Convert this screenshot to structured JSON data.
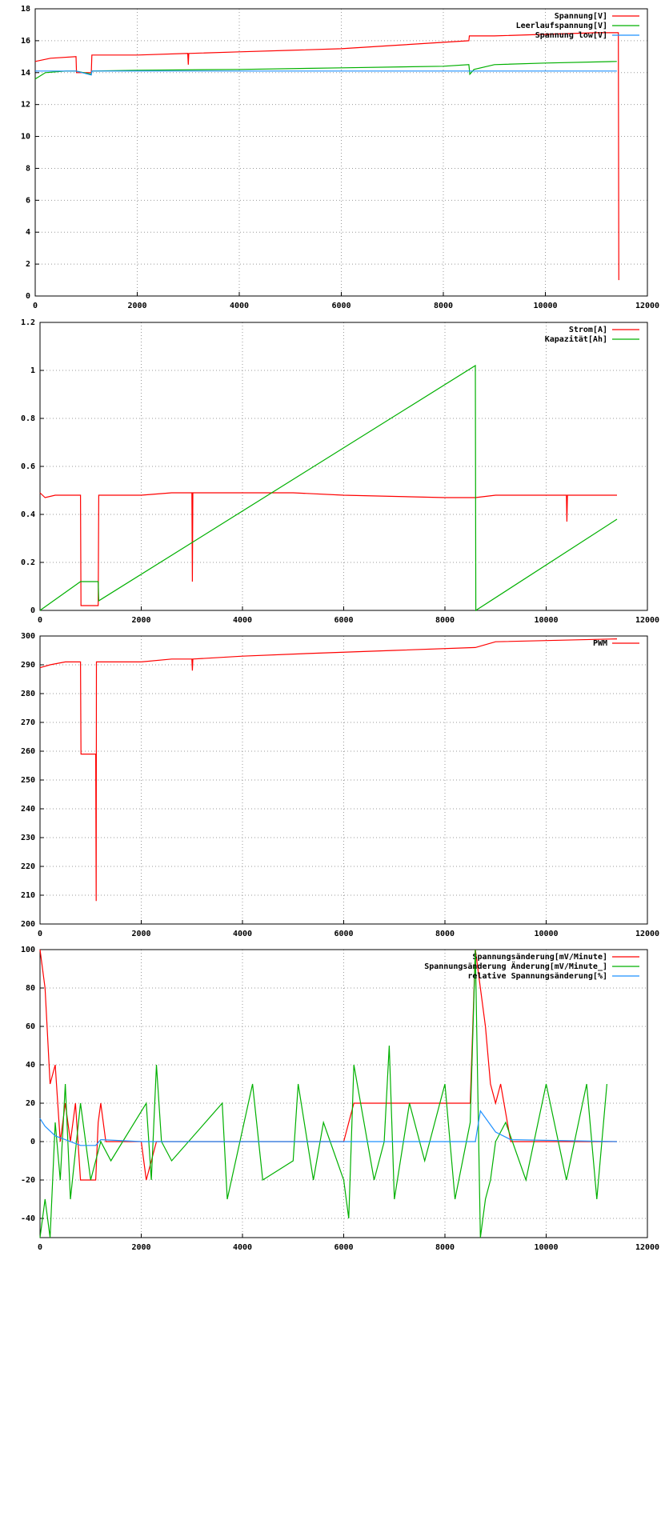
{
  "chart_data": [
    {
      "type": "line",
      "xlim": [
        0,
        12000
      ],
      "xticks": [
        0,
        2000,
        4000,
        6000,
        8000,
        10000,
        12000
      ],
      "ylim": [
        0,
        18
      ],
      "yticks": [
        0,
        2,
        4,
        6,
        8,
        10,
        12,
        14,
        16,
        18
      ],
      "grid": true,
      "legend": "upper right",
      "series": [
        {
          "name": "Spannung[V]",
          "color": "#ff0000",
          "x": [
            0,
            300,
            800,
            810,
            1100,
            1110,
            2000,
            2990,
            3000,
            3010,
            4000,
            5000,
            6000,
            7000,
            8000,
            8500,
            8510,
            9000,
            10000,
            11000,
            11400,
            11430,
            11440
          ],
          "values": [
            14.7,
            14.9,
            15.0,
            14.0,
            14.0,
            15.1,
            15.1,
            15.2,
            14.5,
            15.2,
            15.3,
            15.4,
            15.5,
            15.7,
            15.9,
            16.0,
            16.3,
            16.3,
            16.4,
            16.5,
            16.5,
            16.5,
            1.0
          ]
        },
        {
          "name": "Leerlaufspannung[V]",
          "color": "#00b000",
          "x": [
            0,
            200,
            600,
            800,
            1100,
            1110,
            2000,
            4000,
            6000,
            8000,
            8500,
            8520,
            8600,
            9000,
            10000,
            11400
          ],
          "values": [
            13.6,
            14.0,
            14.1,
            14.1,
            13.9,
            14.1,
            14.15,
            14.2,
            14.3,
            14.4,
            14.5,
            13.9,
            14.2,
            14.5,
            14.6,
            14.7
          ]
        },
        {
          "name": "Spannung low[V]",
          "color": "#1e90ff",
          "x": [
            0,
            800,
            1100,
            1110,
            11400
          ],
          "values": [
            14.1,
            14.1,
            13.85,
            14.1,
            14.1
          ]
        }
      ]
    },
    {
      "type": "line",
      "xlim": [
        0,
        12000
      ],
      "xticks": [
        0,
        2000,
        4000,
        6000,
        8000,
        10000,
        12000
      ],
      "ylim": [
        0,
        1.2
      ],
      "yticks": [
        0,
        0.2,
        0.4,
        0.6,
        0.8,
        1,
        1.2
      ],
      "grid": true,
      "legend": "upper right",
      "series": [
        {
          "name": "Strom[A]",
          "color": "#ff0000",
          "x": [
            0,
            100,
            300,
            800,
            810,
            1150,
            1160,
            2000,
            2600,
            3000,
            3010,
            3020,
            4000,
            5000,
            6000,
            7000,
            8000,
            8600,
            9000,
            10000,
            10400,
            10410,
            10420,
            11400
          ],
          "values": [
            0.49,
            0.47,
            0.48,
            0.48,
            0.02,
            0.02,
            0.48,
            0.48,
            0.49,
            0.49,
            0.12,
            0.49,
            0.49,
            0.49,
            0.48,
            0.475,
            0.47,
            0.47,
            0.48,
            0.48,
            0.48,
            0.37,
            0.48,
            0.48
          ]
        },
        {
          "name": "Kapazität[Ah]",
          "color": "#00b000",
          "x": [
            0,
            800,
            1150,
            1160,
            8600,
            8610,
            11400
          ],
          "values": [
            0,
            0.12,
            0.12,
            0.04,
            1.02,
            0,
            0.38
          ]
        }
      ]
    },
    {
      "type": "line",
      "xlim": [
        0,
        12000
      ],
      "xticks": [
        0,
        2000,
        4000,
        6000,
        8000,
        10000,
        12000
      ],
      "ylim": [
        200,
        300
      ],
      "yticks": [
        200,
        210,
        220,
        230,
        240,
        250,
        260,
        270,
        280,
        290,
        300
      ],
      "grid": true,
      "legend": "upper right",
      "series": [
        {
          "name": "PWM",
          "color": "#ff0000",
          "x": [
            0,
            200,
            500,
            800,
            810,
            1100,
            1110,
            1115,
            1130,
            2000,
            2600,
            3000,
            3010,
            3020,
            4000,
            5400,
            7000,
            8600,
            9000,
            11400
          ],
          "values": [
            289,
            290,
            291,
            291,
            259,
            259,
            208,
            291,
            291,
            291,
            292,
            292,
            288,
            292,
            293,
            294,
            295,
            296,
            298,
            299
          ]
        }
      ]
    },
    {
      "type": "line",
      "xlim": [
        0,
        12000
      ],
      "xticks": [
        0,
        2000,
        4000,
        6000,
        8000,
        10000,
        12000
      ],
      "ylim": [
        -50,
        100
      ],
      "yticks": [
        -40,
        -20,
        0,
        20,
        40,
        60,
        80,
        100
      ],
      "grid": true,
      "legend": "upper right",
      "series": [
        {
          "name": "Spannungsänderung[mV/Minute]",
          "color": "#ff0000",
          "x": [
            0,
            100,
            200,
            300,
            400,
            500,
            600,
            700,
            800,
            1100,
            1150,
            1200,
            1300,
            2000,
            2100,
            2300,
            6000,
            6200,
            8500,
            8600,
            8700,
            8800,
            8900,
            9000,
            9100,
            9300,
            11400
          ],
          "values": [
            100,
            80,
            30,
            40,
            0,
            20,
            0,
            20,
            -20,
            -20,
            10,
            20,
            0,
            0,
            -20,
            0,
            0,
            20,
            20,
            100,
            80,
            60,
            30,
            20,
            30,
            0,
            0
          ]
        },
        {
          "name": "Spannungsänderung Änderung[mV/Minute_]",
          "color": "#00b000",
          "x": [
            0,
            100,
            200,
            300,
            400,
            500,
            600,
            800,
            1000,
            1200,
            1400,
            2100,
            2200,
            2300,
            2400,
            2600,
            3600,
            3700,
            4200,
            4400,
            5000,
            5100,
            5400,
            5600,
            6000,
            6100,
            6200,
            6600,
            6800,
            6900,
            7000,
            7300,
            7600,
            8000,
            8200,
            8500,
            8600,
            8700,
            8800,
            8900,
            9000,
            9200,
            9600,
            10000,
            10400,
            10800,
            11000,
            11200
          ],
          "values": [
            -50,
            -30,
            -50,
            10,
            -20,
            30,
            -30,
            20,
            -20,
            0,
            -10,
            20,
            -20,
            40,
            0,
            -10,
            20,
            -30,
            30,
            -20,
            -10,
            30,
            -20,
            10,
            -20,
            -40,
            40,
            -20,
            0,
            50,
            -30,
            20,
            -10,
            30,
            -30,
            10,
            100,
            -50,
            -30,
            -20,
            0,
            10,
            -20,
            30,
            -20,
            30,
            -30,
            30
          ]
        },
        {
          "name": "relative Spannungsänderung[%]",
          "color": "#1e90ff",
          "x": [
            0,
            100,
            300,
            500,
            800,
            1100,
            1200,
            2000,
            8600,
            8700,
            9000,
            9300,
            11400
          ],
          "values": [
            12,
            8,
            3,
            1,
            -2,
            -2,
            1,
            0,
            0,
            16,
            5,
            1,
            0
          ]
        }
      ]
    }
  ]
}
